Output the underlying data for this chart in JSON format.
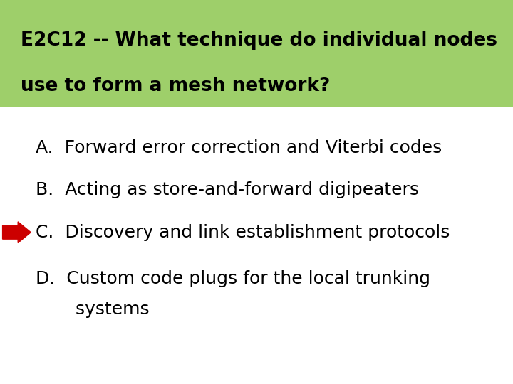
{
  "title_line1": "E2C12 -- What technique do individual nodes",
  "title_line2": "use to form a mesh network?",
  "title_bg_color": "#9ecf6a",
  "title_text_color": "#000000",
  "bg_color": "#ffffff",
  "answer_A": "A.  Forward error correction and Viterbi codes",
  "answer_B": "B.  Acting as store-and-forward digipeaters",
  "answer_C": "C.  Discovery and link establishment protocols",
  "answer_D1": "D.  Custom code plugs for the local trunking",
  "answer_D2": "       systems",
  "correct_index": 2,
  "arrow_color": "#cc0000",
  "text_color": "#000000",
  "title_fontsize": 19,
  "answer_fontsize": 18
}
